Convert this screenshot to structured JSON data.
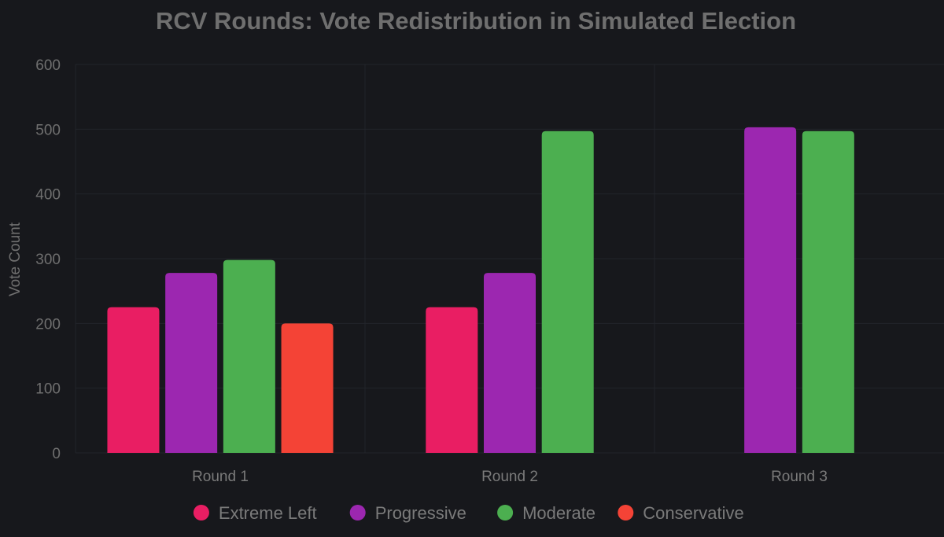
{
  "chart_data": {
    "type": "bar",
    "title": "RCV Rounds: Vote Redistribution in Simulated Election",
    "xlabel": "",
    "ylabel": "Vote Count",
    "ylim": [
      0,
      600
    ],
    "yticks": [
      0,
      100,
      200,
      300,
      400,
      500,
      600
    ],
    "categories": [
      "Round 1",
      "Round 2",
      "Round 3"
    ],
    "grid": true,
    "legend_position": "bottom",
    "series": [
      {
        "name": "Extreme Left",
        "color": "#e91e63",
        "values": [
          225,
          225,
          null
        ]
      },
      {
        "name": "Progressive",
        "color": "#9c27b0",
        "values": [
          278,
          278,
          503
        ]
      },
      {
        "name": "Moderate",
        "color": "#4caf50",
        "values": [
          298,
          497,
          497
        ]
      },
      {
        "name": "Conservative",
        "color": "#f44336",
        "values": [
          200,
          null,
          null
        ]
      }
    ]
  }
}
